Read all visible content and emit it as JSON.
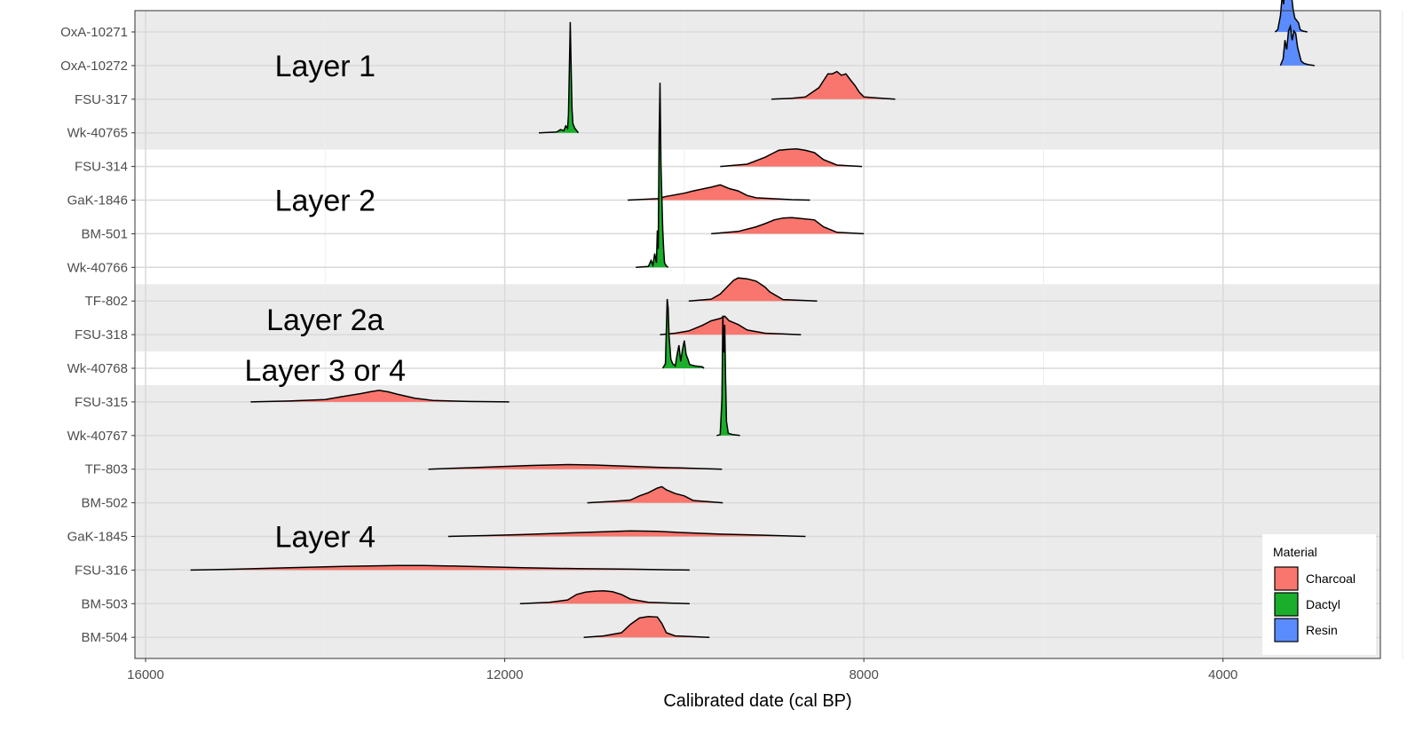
{
  "chart_data": {
    "type": "ridgeline",
    "xlabel": "Calibrated date (cal BP)",
    "x_reversed": true,
    "xlim": [
      16000,
      1700
    ],
    "x_ticks": [
      16000,
      12000,
      8000,
      4000
    ],
    "x_tick_labels": [
      "16000",
      "12000",
      "8000",
      "4000"
    ],
    "x_minor_gridlines": [
      14000,
      10000,
      6000,
      2000
    ],
    "samples": [
      {
        "label": "OxA-10271",
        "material": "Resin",
        "points": [
          [
            3420,
            0
          ],
          [
            3390,
            0.05
          ],
          [
            3360,
            0.35
          ],
          [
            3340,
            0.8
          ],
          [
            3325,
            0.6
          ],
          [
            3310,
            0.95
          ],
          [
            3295,
            0.7
          ],
          [
            3280,
            1.0
          ],
          [
            3260,
            0.75
          ],
          [
            3240,
            0.85
          ],
          [
            3220,
            0.5
          ],
          [
            3200,
            0.3
          ],
          [
            3180,
            0.25
          ],
          [
            3160,
            0.2
          ],
          [
            3140,
            0.05
          ],
          [
            3110,
            0.02
          ],
          [
            3060,
            0
          ]
        ]
      },
      {
        "label": "OxA-10272",
        "material": "Resin",
        "points": [
          [
            3360,
            0
          ],
          [
            3330,
            0.15
          ],
          [
            3310,
            0.55
          ],
          [
            3290,
            0.35
          ],
          [
            3270,
            0.75
          ],
          [
            3250,
            0.85
          ],
          [
            3230,
            0.55
          ],
          [
            3210,
            0.75
          ],
          [
            3190,
            0.7
          ],
          [
            3170,
            0.4
          ],
          [
            3150,
            0.25
          ],
          [
            3130,
            0.1
          ],
          [
            3100,
            0.05
          ],
          [
            3050,
            0.02
          ],
          [
            2980,
            0
          ]
        ]
      },
      {
        "label": "FSU-317",
        "material": "Charcoal",
        "points": [
          [
            9030,
            0
          ],
          [
            8800,
            0.02
          ],
          [
            8650,
            0.05
          ],
          [
            8500,
            0.25
          ],
          [
            8450,
            0.4
          ],
          [
            8400,
            0.55
          ],
          [
            8350,
            0.55
          ],
          [
            8300,
            0.6
          ],
          [
            8250,
            0.52
          ],
          [
            8200,
            0.55
          ],
          [
            8150,
            0.42
          ],
          [
            8100,
            0.3
          ],
          [
            8050,
            0.15
          ],
          [
            8000,
            0.05
          ],
          [
            7800,
            0.02
          ],
          [
            7650,
            0
          ]
        ]
      },
      {
        "label": "Wk-40765",
        "material": "Dactyl",
        "points": [
          [
            11620,
            0
          ],
          [
            11420,
            0.02
          ],
          [
            11380,
            0.07
          ],
          [
            11340,
            0.05
          ],
          [
            11320,
            0.15
          ],
          [
            11300,
            0.1
          ],
          [
            11290,
            0.4
          ],
          [
            11280,
            1.4
          ],
          [
            11270,
            2.4
          ],
          [
            11260,
            1.4
          ],
          [
            11250,
            0.5
          ],
          [
            11240,
            0.2
          ],
          [
            11220,
            0.1
          ],
          [
            11200,
            0.05
          ],
          [
            11180,
            0
          ]
        ]
      },
      {
        "label": "FSU-314",
        "material": "Charcoal",
        "points": [
          [
            9600,
            0
          ],
          [
            9300,
            0.05
          ],
          [
            9100,
            0.2
          ],
          [
            9000,
            0.3
          ],
          [
            8950,
            0.35
          ],
          [
            8850,
            0.37
          ],
          [
            8750,
            0.38
          ],
          [
            8650,
            0.35
          ],
          [
            8550,
            0.3
          ],
          [
            8450,
            0.15
          ],
          [
            8300,
            0.03
          ],
          [
            8020,
            0
          ]
        ]
      },
      {
        "label": "GaK-1846",
        "material": "Charcoal",
        "points": [
          [
            10630,
            0
          ],
          [
            10300,
            0.03
          ],
          [
            10200,
            0.08
          ],
          [
            10000,
            0.15
          ],
          [
            9900,
            0.2
          ],
          [
            9700,
            0.28
          ],
          [
            9600,
            0.33
          ],
          [
            9500,
            0.25
          ],
          [
            9400,
            0.2
          ],
          [
            9300,
            0.1
          ],
          [
            9200,
            0.05
          ],
          [
            8800,
            0.01
          ],
          [
            8600,
            0
          ]
        ]
      },
      {
        "label": "BM-501",
        "material": "Charcoal",
        "points": [
          [
            9700,
            0
          ],
          [
            9400,
            0.05
          ],
          [
            9200,
            0.15
          ],
          [
            9100,
            0.22
          ],
          [
            9000,
            0.3
          ],
          [
            8900,
            0.34
          ],
          [
            8800,
            0.35
          ],
          [
            8700,
            0.33
          ],
          [
            8550,
            0.3
          ],
          [
            8450,
            0.15
          ],
          [
            8300,
            0.03
          ],
          [
            8000,
            0
          ]
        ]
      },
      {
        "label": "Wk-40766",
        "material": "Dactyl",
        "points": [
          [
            10540,
            0
          ],
          [
            10400,
            0.02
          ],
          [
            10370,
            0.15
          ],
          [
            10350,
            0.05
          ],
          [
            10330,
            0.3
          ],
          [
            10310,
            0.1
          ],
          [
            10300,
            0.8
          ],
          [
            10290,
            0.4
          ],
          [
            10280,
            2.8
          ],
          [
            10270,
            4.0
          ],
          [
            10260,
            2.2
          ],
          [
            10250,
            1.5
          ],
          [
            10240,
            0.8
          ],
          [
            10230,
            0.4
          ],
          [
            10220,
            0.1
          ],
          [
            10200,
            0.03
          ],
          [
            10180,
            0
          ]
        ]
      },
      {
        "label": "TF-802",
        "material": "Charcoal",
        "points": [
          [
            9950,
            0
          ],
          [
            9700,
            0.04
          ],
          [
            9600,
            0.15
          ],
          [
            9500,
            0.35
          ],
          [
            9450,
            0.45
          ],
          [
            9400,
            0.5
          ],
          [
            9300,
            0.48
          ],
          [
            9200,
            0.43
          ],
          [
            9100,
            0.3
          ],
          [
            9050,
            0.2
          ],
          [
            8900,
            0.03
          ],
          [
            8520,
            0
          ]
        ]
      },
      {
        "label": "FSU-318",
        "material": "Charcoal",
        "points": [
          [
            10270,
            0
          ],
          [
            10100,
            0.03
          ],
          [
            9950,
            0.08
          ],
          [
            9800,
            0.2
          ],
          [
            9700,
            0.3
          ],
          [
            9600,
            0.35
          ],
          [
            9550,
            0.4
          ],
          [
            9500,
            0.3
          ],
          [
            9400,
            0.22
          ],
          [
            9300,
            0.1
          ],
          [
            9100,
            0.03
          ],
          [
            8700,
            0
          ]
        ]
      },
      {
        "label": "Wk-40768",
        "material": "Dactyl",
        "points": [
          [
            10240,
            0
          ],
          [
            10210,
            0.1
          ],
          [
            10200,
            0.8
          ],
          [
            10190,
            1.5
          ],
          [
            10180,
            1.3
          ],
          [
            10170,
            0.7
          ],
          [
            10150,
            0.2
          ],
          [
            10130,
            0.1
          ],
          [
            10100,
            0.05
          ],
          [
            10080,
            0.3
          ],
          [
            10060,
            0.5
          ],
          [
            10040,
            0.15
          ],
          [
            10020,
            0.4
          ],
          [
            10000,
            0.6
          ],
          [
            9980,
            0.3
          ],
          [
            9960,
            0.2
          ],
          [
            9940,
            0.08
          ],
          [
            9880,
            0.05
          ],
          [
            9800,
            0.03
          ],
          [
            9780,
            0
          ]
        ]
      },
      {
        "label": "FSU-315",
        "material": "Charcoal",
        "points": [
          [
            14830,
            0
          ],
          [
            14400,
            0.02
          ],
          [
            14000,
            0.05
          ],
          [
            13800,
            0.12
          ],
          [
            13600,
            0.18
          ],
          [
            13500,
            0.22
          ],
          [
            13400,
            0.25
          ],
          [
            13300,
            0.22
          ],
          [
            13200,
            0.17
          ],
          [
            13000,
            0.08
          ],
          [
            12800,
            0.03
          ],
          [
            12400,
            0.01
          ],
          [
            11950,
            0
          ]
        ]
      },
      {
        "label": "Wk-40767",
        "material": "Dactyl",
        "points": [
          [
            9640,
            0
          ],
          [
            9600,
            0.02
          ],
          [
            9580,
            0.8
          ],
          [
            9570,
            2.6
          ],
          [
            9560,
            1.8
          ],
          [
            9550,
            2.4
          ],
          [
            9540,
            1.2
          ],
          [
            9530,
            0.3
          ],
          [
            9510,
            0.05
          ],
          [
            9460,
            0.02
          ],
          [
            9380,
            0
          ]
        ]
      },
      {
        "label": "TF-803",
        "material": "Charcoal",
        "points": [
          [
            12850,
            0
          ],
          [
            12400,
            0.03
          ],
          [
            12000,
            0.06
          ],
          [
            11700,
            0.08
          ],
          [
            11300,
            0.1
          ],
          [
            11000,
            0.09
          ],
          [
            10700,
            0.07
          ],
          [
            10300,
            0.04
          ],
          [
            9900,
            0.02
          ],
          [
            9580,
            0
          ]
        ]
      },
      {
        "label": "BM-502",
        "material": "Charcoal",
        "points": [
          [
            11080,
            0
          ],
          [
            10800,
            0.03
          ],
          [
            10600,
            0.06
          ],
          [
            10500,
            0.15
          ],
          [
            10400,
            0.22
          ],
          [
            10300,
            0.32
          ],
          [
            10250,
            0.35
          ],
          [
            10200,
            0.28
          ],
          [
            10100,
            0.2
          ],
          [
            10000,
            0.15
          ],
          [
            9950,
            0.1
          ],
          [
            9900,
            0.05
          ],
          [
            9570,
            0
          ]
        ]
      },
      {
        "label": "GaK-1845",
        "material": "Charcoal",
        "points": [
          [
            12630,
            0
          ],
          [
            12200,
            0.02
          ],
          [
            11800,
            0.04
          ],
          [
            11200,
            0.08
          ],
          [
            10900,
            0.1
          ],
          [
            10600,
            0.12
          ],
          [
            10300,
            0.11
          ],
          [
            10000,
            0.08
          ],
          [
            9600,
            0.05
          ],
          [
            9200,
            0.03
          ],
          [
            8650,
            0
          ]
        ]
      },
      {
        "label": "FSU-316",
        "material": "Charcoal",
        "points": [
          [
            15500,
            0
          ],
          [
            15000,
            0.02
          ],
          [
            14400,
            0.05
          ],
          [
            13800,
            0.08
          ],
          [
            13200,
            0.1
          ],
          [
            12900,
            0.1
          ],
          [
            12400,
            0.08
          ],
          [
            11800,
            0.05
          ],
          [
            11200,
            0.03
          ],
          [
            10600,
            0.02
          ],
          [
            9940,
            0
          ]
        ]
      },
      {
        "label": "BM-503",
        "material": "Charcoal",
        "points": [
          [
            11830,
            0
          ],
          [
            11500,
            0.03
          ],
          [
            11300,
            0.08
          ],
          [
            11200,
            0.2
          ],
          [
            11100,
            0.25
          ],
          [
            11000,
            0.27
          ],
          [
            10900,
            0.28
          ],
          [
            10800,
            0.26
          ],
          [
            10700,
            0.2
          ],
          [
            10600,
            0.1
          ],
          [
            10400,
            0.03
          ],
          [
            9940,
            0
          ]
        ]
      },
      {
        "label": "BM-504",
        "material": "Charcoal",
        "points": [
          [
            11120,
            0
          ],
          [
            10900,
            0.03
          ],
          [
            10700,
            0.1
          ],
          [
            10600,
            0.28
          ],
          [
            10500,
            0.42
          ],
          [
            10400,
            0.45
          ],
          [
            10300,
            0.44
          ],
          [
            10250,
            0.3
          ],
          [
            10200,
            0.1
          ],
          [
            10100,
            0.03
          ],
          [
            9720,
            0
          ]
        ]
      }
    ],
    "layer_bands": [
      {
        "label": "Layer 1",
        "from_row": 0,
        "to_row": 3,
        "shaded": true,
        "label_row": 1,
        "label_x": 14000
      },
      {
        "label": "Layer 2",
        "from_row": 4,
        "to_row": 7,
        "shaded": false,
        "label_row": 5,
        "label_x": 14000
      },
      {
        "label": "Layer 2a",
        "from_row": 8,
        "to_row": 9,
        "shaded": true,
        "label_row": 8.55,
        "label_x": 14000
      },
      {
        "label": "Layer 3 or 4",
        "from_row": 10,
        "to_row": 10,
        "shaded": false,
        "label_row": 10.05,
        "label_x": 14000
      },
      {
        "label": "Layer 4",
        "from_row": 11,
        "to_row": 18,
        "shaded": true,
        "label_row": 15,
        "label_x": 14000
      }
    ],
    "legend": {
      "title": "Material",
      "placement": "bottom-right",
      "items": [
        {
          "label": "Charcoal",
          "color": "#F8766D"
        },
        {
          "label": "Dactyl",
          "color": "#1BAE2B"
        },
        {
          "label": "Resin",
          "color": "#5B8CFF"
        }
      ]
    },
    "colors": {
      "Charcoal": "#F8766D",
      "Dactyl": "#1BAE2B",
      "Resin": "#5B8CFF",
      "band_shaded": "#EBEBEB",
      "band_plain": "#FFFFFF",
      "grid_major": "#D9D9D9",
      "grid_minor": "#EEEEEE"
    }
  }
}
